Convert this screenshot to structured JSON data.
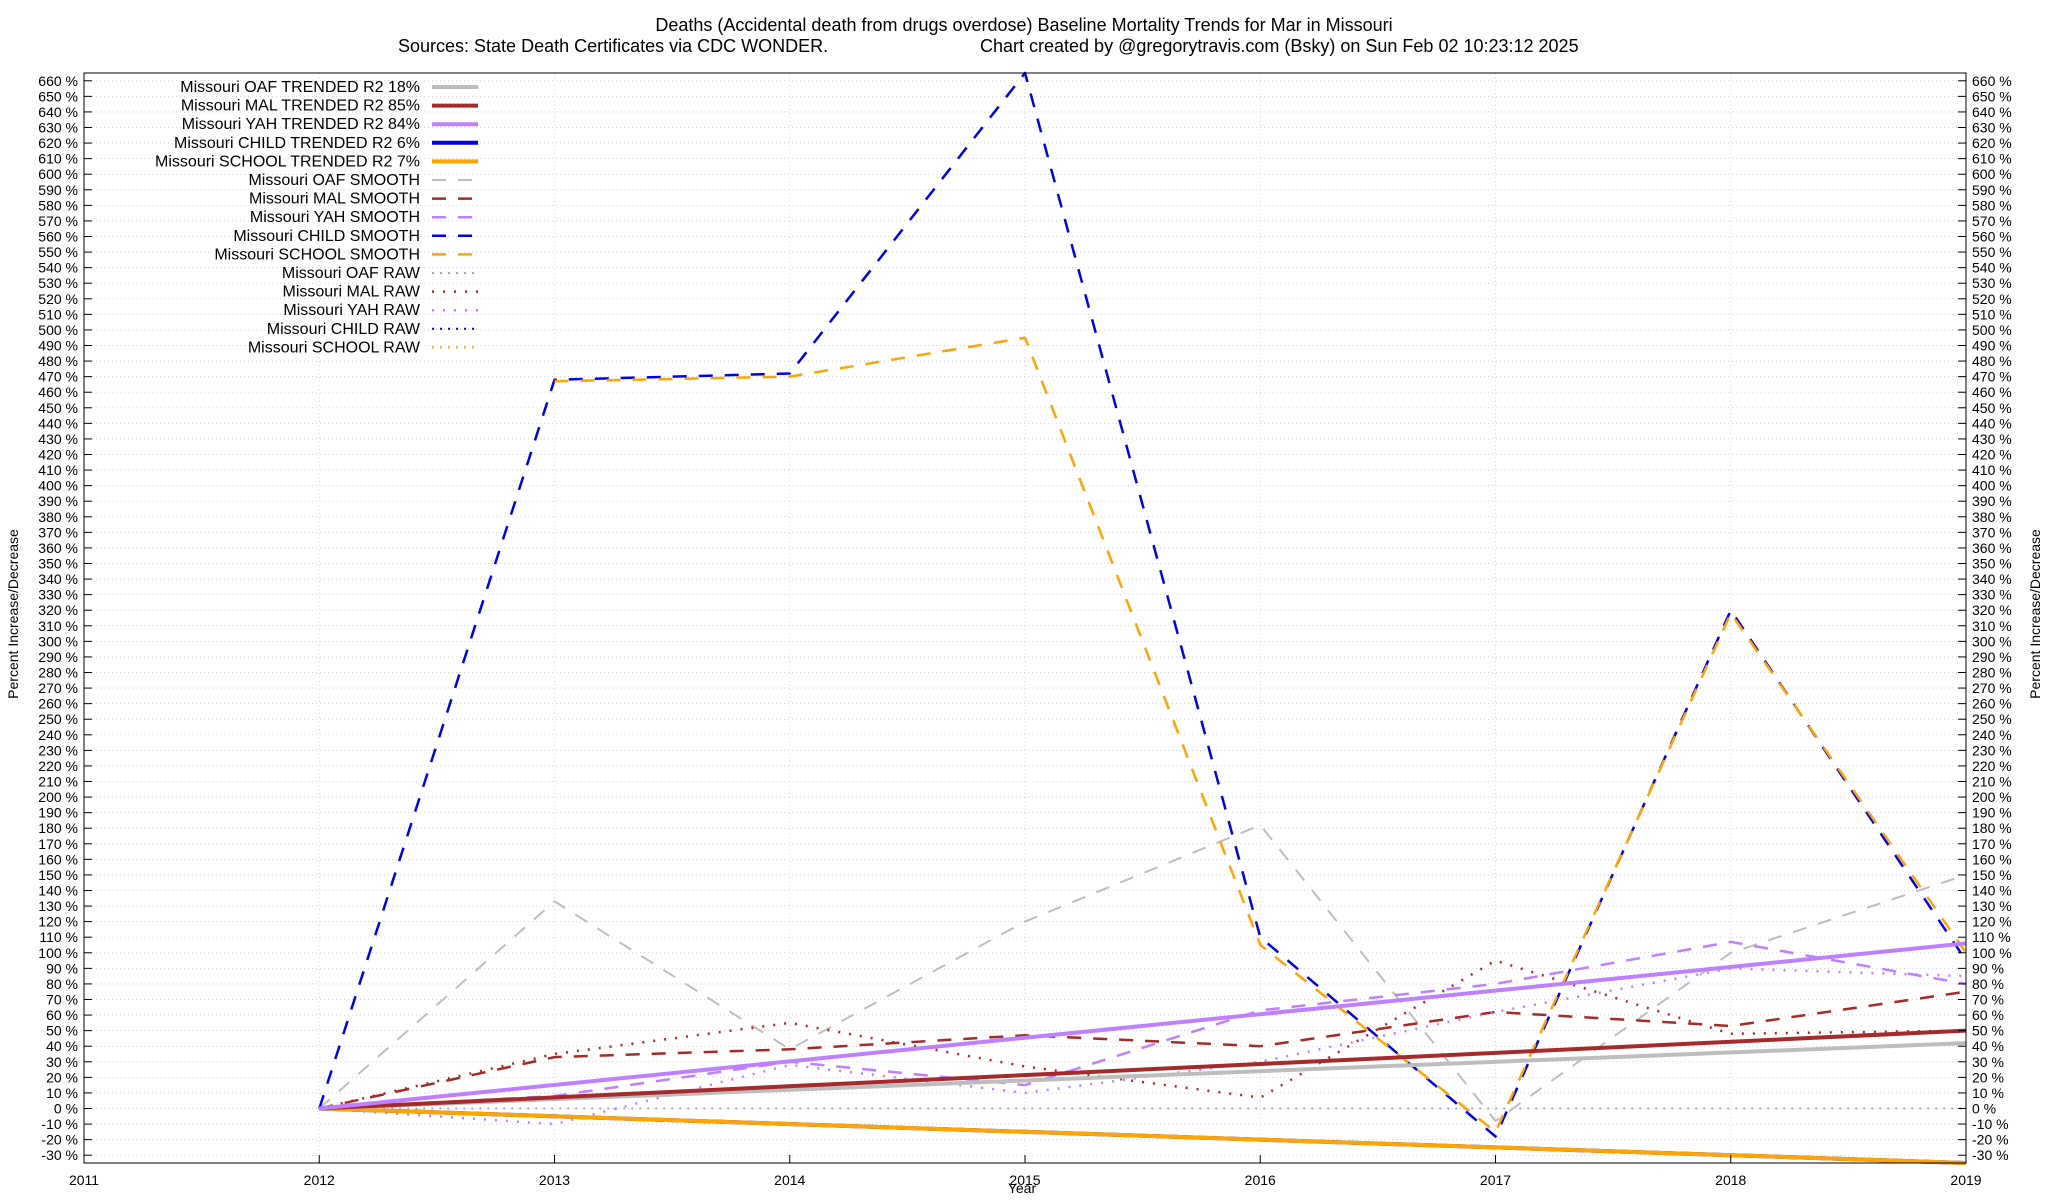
{
  "chart_data": {
    "type": "line",
    "title_line1": "Deaths (Accidental death from drugs overdose)  Baseline Mortality Trends for Mar in Missouri",
    "title_line2_left": "Sources: State Death Certificates via CDC WONDER.",
    "title_line2_right": "Chart created by @gregorytravis.com (Bsky) on Sun Feb 02 10:23:12 2025",
    "xlabel": "Year",
    "ylabel_left": "Percent Increase/Decrease",
    "ylabel_right": "Percent Increase/Decrease",
    "xlim": [
      2011,
      2019
    ],
    "ylim": [
      -35,
      665
    ],
    "x_ticks": [
      "2011",
      "2012",
      "2013",
      "2014",
      "2015",
      "2016",
      "2017",
      "2018",
      "2019"
    ],
    "y_tick_step": 10,
    "y_tick_min": -30,
    "y_tick_max": 660,
    "y_tick_suffix": " %",
    "grid": true,
    "legend_position": "top-left",
    "series": [
      {
        "name": "Missouri OAF TRENDED R2  18%",
        "style": "solid",
        "width": 4,
        "color": "#bdbdbd",
        "x": [
          2012,
          2019
        ],
        "y": [
          0,
          42
        ]
      },
      {
        "name": "Missouri MAL TRENDED R2  85%",
        "style": "solid",
        "width": 4,
        "color": "#a52a2a",
        "x": [
          2012,
          2019
        ],
        "y": [
          0,
          50
        ]
      },
      {
        "name": "Missouri YAH TRENDED R2  84%",
        "style": "solid",
        "width": 4,
        "color": "#bf7fff",
        "x": [
          2012,
          2019
        ],
        "y": [
          0,
          106
        ]
      },
      {
        "name": "Missouri CHILD TRENDED R2   6%",
        "style": "solid",
        "width": 4,
        "color": "#0000ee",
        "x": [
          2012,
          2019
        ],
        "y": [
          0,
          -38
        ]
      },
      {
        "name": "Missouri SCHOOL TRENDED R2   7%",
        "style": "solid",
        "width": 4,
        "color": "#ffa500",
        "x": [
          2012,
          2019
        ],
        "y": [
          0,
          -38
        ]
      },
      {
        "name": "Missouri OAF SMOOTH",
        "style": "dashed",
        "width": 2,
        "color": "#bdbdbd",
        "x": [
          2012,
          2013,
          2014,
          2015,
          2016,
          2017,
          2018,
          2019
        ],
        "y": [
          0,
          133,
          38,
          120,
          182,
          -8,
          100,
          150
        ]
      },
      {
        "name": "Missouri MAL SMOOTH",
        "style": "dashed",
        "width": 2.5,
        "color": "#a52a2a",
        "x": [
          2012,
          2013,
          2014,
          2015,
          2016,
          2017,
          2018,
          2019
        ],
        "y": [
          0,
          33,
          38,
          47,
          40,
          62,
          53,
          75
        ]
      },
      {
        "name": "Missouri YAH SMOOTH",
        "style": "dashed",
        "width": 2.5,
        "color": "#bf7fff",
        "x": [
          2012,
          2013,
          2014,
          2015,
          2016,
          2017,
          2018,
          2019
        ],
        "y": [
          0,
          8,
          30,
          15,
          63,
          80,
          107,
          80
        ]
      },
      {
        "name": "Missouri CHILD SMOOTH",
        "style": "dashed",
        "width": 2.5,
        "color": "#0000ee",
        "x": [
          2012,
          2013,
          2014,
          2015,
          2016,
          2017,
          2018,
          2019
        ],
        "y": [
          0,
          468,
          472,
          665,
          110,
          -18,
          320,
          95
        ]
      },
      {
        "name": "Missouri SCHOOL SMOOTH",
        "style": "dashed",
        "width": 2.5,
        "color": "#ffa500",
        "x": [
          2013,
          2014,
          2015,
          2016,
          2017,
          2018,
          2019
        ],
        "y": [
          467,
          470,
          495,
          105,
          -15,
          318,
          100
        ]
      },
      {
        "name": "Missouri OAF RAW",
        "style": "dotted",
        "width": 2,
        "color": "#a0a0c8",
        "x": [
          2012,
          2019
        ],
        "y": [
          0,
          0
        ]
      },
      {
        "name": "Missouri MAL RAW",
        "style": "dotted",
        "width": 2.5,
        "color": "#a52a2a",
        "x": [
          2012,
          2013,
          2014,
          2015,
          2016,
          2017,
          2018,
          2019
        ],
        "y": [
          0,
          35,
          55,
          27,
          7,
          95,
          48,
          50
        ]
      },
      {
        "name": "Missouri YAH RAW",
        "style": "dotted",
        "width": 2.5,
        "color": "#bf7fff",
        "x": [
          2012,
          2013,
          2014,
          2015,
          2016,
          2017,
          2018,
          2019
        ],
        "y": [
          0,
          -10,
          28,
          10,
          30,
          62,
          90,
          85
        ]
      },
      {
        "name": "Missouri CHILD RAW",
        "style": "dotted",
        "width": 2,
        "color": "#0000ee",
        "x": [],
        "y": []
      },
      {
        "name": "Missouri SCHOOL RAW",
        "style": "dotted",
        "width": 2,
        "color": "#ffa500",
        "x": [],
        "y": []
      }
    ]
  }
}
